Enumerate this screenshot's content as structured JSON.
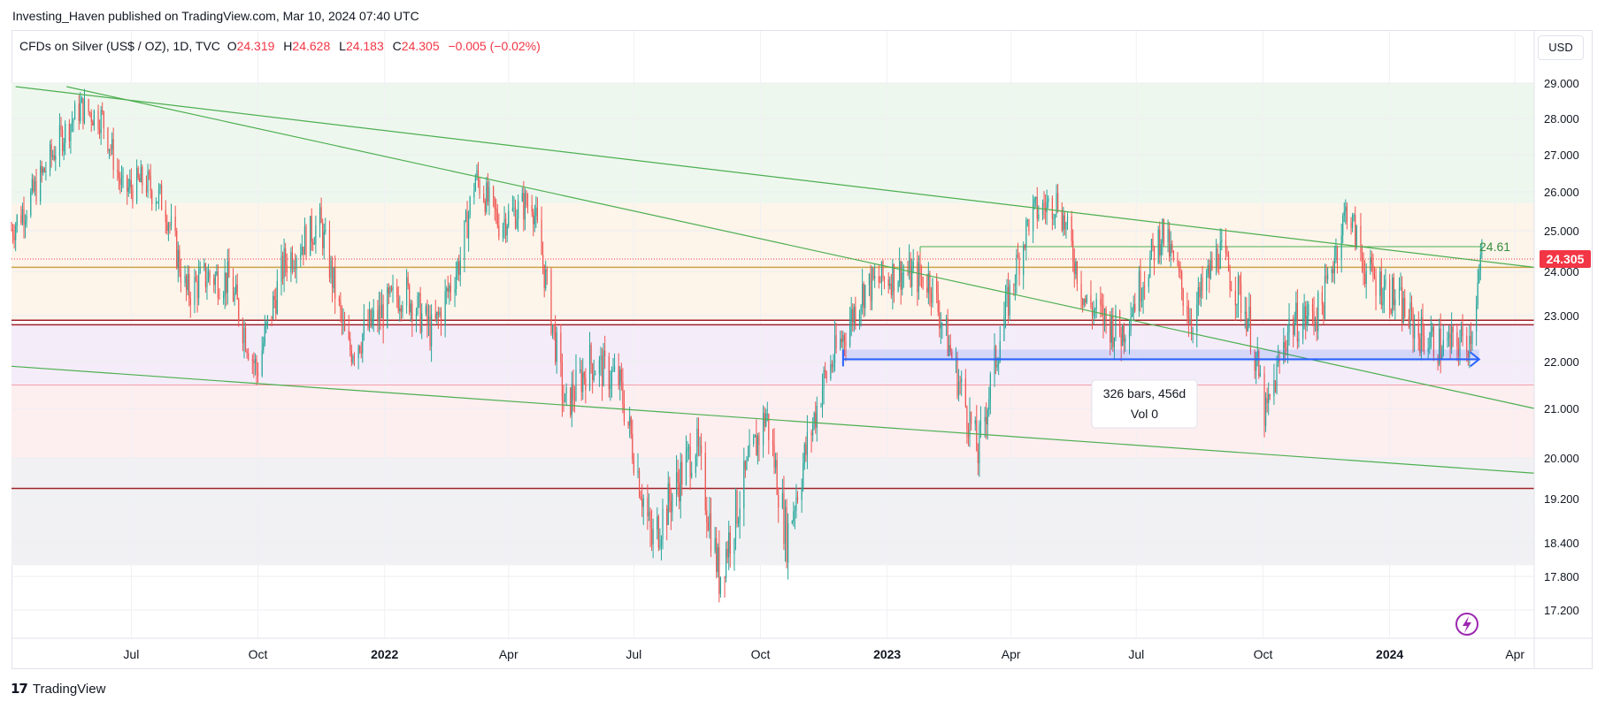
{
  "header": {
    "credit": "Investing_Haven published on TradingView.com, Mar 10, 2024 07:40 UTC"
  },
  "legend": {
    "symbol": "CFDs on Silver (US$ / OZ), 1D, TVC",
    "o_label": "O",
    "o_value": "24.319",
    "h_label": "H",
    "h_value": "24.628",
    "l_label": "L",
    "l_value": "24.183",
    "c_label": "C",
    "c_value": "24.305",
    "change": "−0.005 (−0.02%)"
  },
  "currency_button": "USD",
  "footer": {
    "logo": "17",
    "brand": "TradingView"
  },
  "annotations": {
    "level_label": "24.61",
    "price_tag": "24.305",
    "range_line1": "326 bars, 456d",
    "range_line2": "Vol 0"
  },
  "colors": {
    "up": "#26a69a",
    "down": "#ef5350",
    "trend": "#4caf50",
    "measure": "#2962ff",
    "price_tag_bg": "#f23645",
    "zone_green": "#eef7ee",
    "zone_orange": "#fdf4ea",
    "zone_purple": "#f4ecf8",
    "zone_pink": "#fdeef0",
    "zone_gray": "#f1f1f3",
    "support_line": "#a0212a"
  },
  "chart_data": {
    "type": "candlestick",
    "title": "CFDs on Silver (US$ / OZ), 1D, TVC",
    "y_ticks": [
      "29.000",
      "28.000",
      "27.000",
      "26.000",
      "25.000",
      "24.000",
      "23.000",
      "22.000",
      "21.000",
      "20.000",
      "19.200",
      "18.400",
      "17.800",
      "17.200"
    ],
    "x_ticks": [
      "Jul",
      "Oct",
      "2022",
      "Apr",
      "Jul",
      "Oct",
      "2023",
      "Apr",
      "Jul",
      "Oct",
      "2024",
      "Apr"
    ],
    "x_range": [
      "2021-04-05",
      "2024-04-15"
    ],
    "close_path": [
      {
        "date": "2021-04-01",
        "close": 24.8
      },
      {
        "date": "2021-04-20",
        "close": 25.9
      },
      {
        "date": "2021-05-10",
        "close": 27.4
      },
      {
        "date": "2021-05-25",
        "close": 28.3
      },
      {
        "date": "2021-06-10",
        "close": 28.0
      },
      {
        "date": "2021-06-25",
        "close": 26.0
      },
      {
        "date": "2021-07-10",
        "close": 26.3
      },
      {
        "date": "2021-07-25",
        "close": 25.7
      },
      {
        "date": "2021-08-10",
        "close": 23.5
      },
      {
        "date": "2021-08-25",
        "close": 23.9
      },
      {
        "date": "2021-09-10",
        "close": 23.8
      },
      {
        "date": "2021-09-30",
        "close": 21.8
      },
      {
        "date": "2021-10-20",
        "close": 24.2
      },
      {
        "date": "2021-11-15",
        "close": 25.2
      },
      {
        "date": "2021-12-05",
        "close": 22.2
      },
      {
        "date": "2021-12-25",
        "close": 22.9
      },
      {
        "date": "2022-01-15",
        "close": 23.6
      },
      {
        "date": "2022-02-05",
        "close": 22.6
      },
      {
        "date": "2022-02-25",
        "close": 24.3
      },
      {
        "date": "2022-03-08",
        "close": 26.4
      },
      {
        "date": "2022-03-25",
        "close": 25.2
      },
      {
        "date": "2022-04-18",
        "close": 25.8
      },
      {
        "date": "2022-05-12",
        "close": 21.0
      },
      {
        "date": "2022-05-30",
        "close": 22.0
      },
      {
        "date": "2022-06-20",
        "close": 21.6
      },
      {
        "date": "2022-07-14",
        "close": 18.4
      },
      {
        "date": "2022-08-15",
        "close": 20.3
      },
      {
        "date": "2022-09-01",
        "close": 17.8
      },
      {
        "date": "2022-09-20",
        "close": 19.6
      },
      {
        "date": "2022-10-05",
        "close": 20.9
      },
      {
        "date": "2022-10-20",
        "close": 18.5
      },
      {
        "date": "2022-11-15",
        "close": 21.5
      },
      {
        "date": "2022-12-15",
        "close": 23.6
      },
      {
        "date": "2023-01-10",
        "close": 24.0
      },
      {
        "date": "2023-02-01",
        "close": 23.8
      },
      {
        "date": "2023-02-20",
        "close": 21.8
      },
      {
        "date": "2023-03-08",
        "close": 20.1
      },
      {
        "date": "2023-03-25",
        "close": 22.7
      },
      {
        "date": "2023-04-15",
        "close": 25.4
      },
      {
        "date": "2023-05-05",
        "close": 25.8
      },
      {
        "date": "2023-05-25",
        "close": 23.3
      },
      {
        "date": "2023-06-20",
        "close": 22.6
      },
      {
        "date": "2023-07-20",
        "close": 25.0
      },
      {
        "date": "2023-08-10",
        "close": 22.9
      },
      {
        "date": "2023-08-30",
        "close": 24.5
      },
      {
        "date": "2023-09-20",
        "close": 23.0
      },
      {
        "date": "2023-10-03",
        "close": 20.8
      },
      {
        "date": "2023-10-20",
        "close": 22.8
      },
      {
        "date": "2023-11-12",
        "close": 23.1
      },
      {
        "date": "2023-12-01",
        "close": 25.6
      },
      {
        "date": "2023-12-15",
        "close": 24.0
      },
      {
        "date": "2024-01-05",
        "close": 23.4
      },
      {
        "date": "2024-01-22",
        "close": 22.6
      },
      {
        "date": "2024-02-10",
        "close": 22.3
      },
      {
        "date": "2024-02-28",
        "close": 22.5
      },
      {
        "date": "2024-03-08",
        "close": 24.3
      }
    ],
    "trendlines": [
      {
        "from": {
          "date": "2021-04-08",
          "price": 28.9
        },
        "to": {
          "date": "2024-04-15",
          "price": 24.1
        }
      },
      {
        "from": {
          "date": "2021-05-15",
          "price": 28.9
        },
        "to": {
          "date": "2024-04-15",
          "price": 21.0
        }
      },
      {
        "from": {
          "date": "2021-04-05",
          "price": 21.9
        },
        "to": {
          "date": "2024-04-15",
          "price": 19.7
        }
      }
    ],
    "horizontal_lines": [
      {
        "price": 24.61,
        "from": "2023-01-25",
        "to": "2024-03-08",
        "label": "24.61"
      },
      {
        "price": 24.1
      },
      {
        "price": 22.9
      },
      {
        "price": 22.8
      },
      {
        "price": 21.5
      },
      {
        "price": 19.4
      }
    ],
    "zones": [
      {
        "from": 25.7,
        "to": 29.0,
        "color": "green"
      },
      {
        "from": 22.9,
        "to": 25.7,
        "color": "orange"
      },
      {
        "from": 21.5,
        "to": 22.8,
        "color": "purple"
      },
      {
        "from": 20.0,
        "to": 21.5,
        "color": "pink"
      },
      {
        "from": 18.0,
        "to": 20.0,
        "color": "gray"
      }
    ],
    "range_measure": {
      "from": "2022-11-30",
      "to": "2024-03-06",
      "price": 22.05,
      "bars": 326,
      "days": 456,
      "volume": 0
    },
    "last_price": 24.305
  }
}
